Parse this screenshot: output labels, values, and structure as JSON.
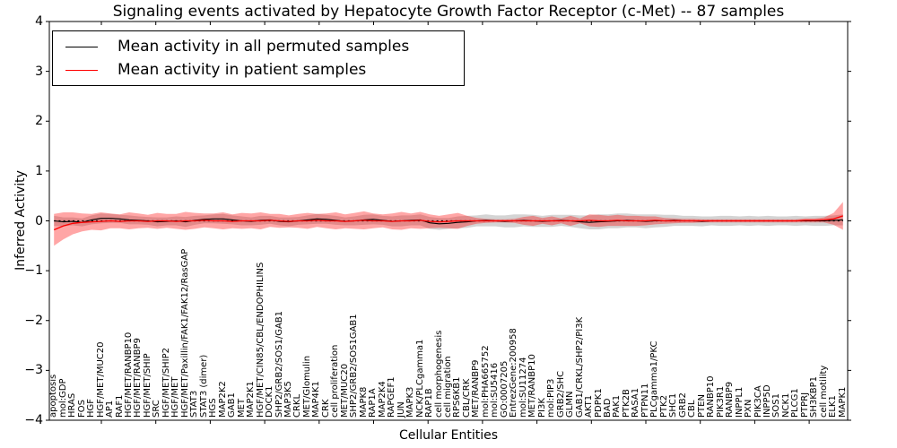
{
  "figure": {
    "title": "Signaling events activated by Hepatocyte Growth Factor Receptor (c-Met) -- 87 samples"
  },
  "chart_data": {
    "type": "line",
    "title": "Signaling events activated by Hepatocyte Growth Factor Receptor (c-Met) -- 87 samples",
    "xlabel": "Cellular Entities",
    "ylabel": "Inferred Activity",
    "ylim": [
      -4,
      4
    ],
    "yticks": [
      4,
      3,
      2,
      1,
      0,
      -1,
      -2,
      -3,
      -4
    ],
    "grid": false,
    "legend_position": "upper left",
    "zero_line": {
      "style": "dotted",
      "color": "#000000",
      "y": 0
    },
    "categories": [
      "apoptosis",
      "mol:GDP",
      "HRAS",
      "FOS",
      "HGF",
      "HGF/MET/MUC20",
      "AP1",
      "RAF1",
      "HGF/MET/RANBP10",
      "HGF/MET/RANBP9",
      "HGF/MET/SHIP",
      "SRC",
      "HGF/MET/SHIP2",
      "HGF/MET",
      "HGF/MET/Paxillin/FAK1/FAK12/RasGAP",
      "STAT3",
      "STAT3 (dimer)",
      "HGS",
      "MAP2K2",
      "GAB1",
      "MET",
      "MAP2K1",
      "HGF/MET/CIN85/CBL/ENDOPHILINS",
      "DOCK1",
      "SHP2/GRB2/SOS1/GAB1",
      "MAP3K5",
      "CRKL",
      "MET/Glomulin",
      "MAP4K1",
      "CRK",
      "cell proliferation",
      "MET/MUC20",
      "SHP2/GRB2/SOS1GAB1",
      "MAPK8",
      "RAP1A",
      "MAP2K4",
      "RAPGEF1",
      "JUN",
      "MAPK3",
      "NCK/PLCgamma1",
      "RAP1B",
      "cell morphogenesis",
      "cell migration",
      "RPS6KB1",
      "CBL/CRK",
      "MET/RANBP9",
      "mol:PHA665752",
      "mol:SU5416",
      "GO:0007205",
      "EntrezGene:200958",
      "mol:SU11274",
      "MET/RANBP10",
      "PI3K",
      "mol:PIP3",
      "GRB2/SHC",
      "GLMN",
      "GAB1/CRKL/SHP2/PI3K",
      "AKT1",
      "PDPK1",
      "BAD",
      "PAK1",
      "PTK2B",
      "RASA1",
      "PTPN11",
      "PLCgamma1/PKC",
      "PTK2",
      "SHC1",
      "GRB2",
      "CBL",
      "PTEN",
      "RANBP10",
      "PIK3R1",
      "RANBP9",
      "INPPL1",
      "PXN",
      "PIK3CA",
      "INPP5D",
      "SOS1",
      "NCK1",
      "PLCG1",
      "PTPRJ",
      "SH3KBP1",
      "cell motility",
      "ELK1",
      "MAPK1"
    ],
    "series": [
      {
        "name": "Mean activity in all permuted samples",
        "color": "#000000",
        "band_color": "#a0a0a0",
        "band_opacity": 0.45,
        "values": [
          0.0,
          -0.02,
          -0.01,
          -0.03,
          0.02,
          0.05,
          0.05,
          0.04,
          0.02,
          0.01,
          0.0,
          -0.02,
          -0.01,
          0.0,
          -0.02,
          0.01,
          0.03,
          0.04,
          0.04,
          0.02,
          0.0,
          -0.01,
          0.01,
          0.02,
          -0.01,
          -0.02,
          0.0,
          0.02,
          0.04,
          0.03,
          0.01,
          -0.01,
          0.0,
          0.02,
          0.03,
          0.01,
          -0.01,
          0.0,
          0.01,
          0.02,
          -0.04,
          -0.06,
          -0.05,
          -0.03,
          -0.02,
          0.0,
          0.01,
          0.0,
          -0.01,
          0.0,
          0.01,
          0.0,
          -0.01,
          0.0,
          0.01,
          0.0,
          -0.02,
          -0.03,
          -0.02,
          -0.01,
          0.0,
          0.01,
          0.0,
          -0.01,
          0.0,
          0.0,
          0.01,
          0.0,
          0.0,
          -0.01,
          0.0,
          0.0,
          0.0,
          0.0,
          0.0,
          0.0,
          0.0,
          0.0,
          0.0,
          0.0,
          0.0,
          0.0,
          0.0,
          0.01,
          0.02
        ],
        "band": [
          0.1,
          0.09,
          0.08,
          0.08,
          0.09,
          0.1,
          0.09,
          0.08,
          0.09,
          0.08,
          0.08,
          0.09,
          0.08,
          0.09,
          0.1,
          0.09,
          0.08,
          0.09,
          0.1,
          0.09,
          0.09,
          0.08,
          0.09,
          0.08,
          0.08,
          0.09,
          0.08,
          0.09,
          0.1,
          0.09,
          0.09,
          0.08,
          0.09,
          0.1,
          0.1,
          0.09,
          0.1,
          0.11,
          0.1,
          0.11,
          0.12,
          0.12,
          0.11,
          0.12,
          0.12,
          0.11,
          0.12,
          0.11,
          0.12,
          0.13,
          0.12,
          0.12,
          0.11,
          0.12,
          0.11,
          0.12,
          0.13,
          0.14,
          0.15,
          0.14,
          0.15,
          0.14,
          0.13,
          0.14,
          0.13,
          0.12,
          0.11,
          0.1,
          0.1,
          0.1,
          0.09,
          0.1,
          0.1,
          0.09,
          0.1,
          0.09,
          0.1,
          0.09,
          0.09,
          0.1,
          0.09,
          0.1,
          0.1,
          0.1,
          0.11
        ]
      },
      {
        "name": "Mean activity in patient samples",
        "color": "#ff0000",
        "band_color": "#ff0000",
        "band_opacity": 0.35,
        "values": [
          -0.18,
          -0.1,
          -0.05,
          -0.03,
          -0.02,
          -0.01,
          0.0,
          -0.01,
          0.0,
          0.0,
          -0.01,
          0.0,
          0.0,
          -0.01,
          0.0,
          0.0,
          0.01,
          0.0,
          0.0,
          -0.01,
          0.0,
          0.0,
          0.0,
          0.01,
          0.0,
          -0.01,
          0.0,
          0.0,
          0.01,
          0.0,
          0.0,
          -0.01,
          0.0,
          0.01,
          0.0,
          0.0,
          -0.01,
          0.0,
          0.0,
          0.01,
          -0.01,
          -0.02,
          -0.01,
          0.0,
          0.0,
          0.0,
          0.0,
          0.0,
          0.0,
          0.0,
          0.0,
          0.0,
          0.0,
          0.0,
          0.0,
          0.0,
          0.0,
          0.01,
          0.0,
          0.0,
          0.01,
          0.0,
          0.0,
          0.0,
          0.01,
          0.0,
          0.0,
          0.0,
          0.0,
          0.0,
          0.0,
          0.0,
          0.0,
          0.0,
          0.0,
          0.0,
          0.0,
          0.0,
          0.0,
          0.0,
          0.01,
          0.01,
          0.02,
          0.04,
          0.1
        ],
        "band": [
          0.32,
          0.27,
          0.22,
          0.18,
          0.16,
          0.18,
          0.15,
          0.14,
          0.17,
          0.15,
          0.13,
          0.16,
          0.14,
          0.15,
          0.18,
          0.16,
          0.14,
          0.15,
          0.17,
          0.14,
          0.16,
          0.15,
          0.17,
          0.13,
          0.14,
          0.12,
          0.14,
          0.16,
          0.13,
          0.15,
          0.17,
          0.14,
          0.16,
          0.18,
          0.15,
          0.13,
          0.16,
          0.18,
          0.15,
          0.17,
          0.14,
          0.12,
          0.14,
          0.16,
          0.1,
          0.06,
          0.04,
          0.03,
          0.03,
          0.04,
          0.08,
          0.1,
          0.06,
          0.09,
          0.05,
          0.1,
          0.05,
          0.12,
          0.12,
          0.1,
          0.11,
          0.1,
          0.1,
          0.09,
          0.08,
          0.06,
          0.05,
          0.04,
          0.04,
          0.03,
          0.03,
          0.03,
          0.03,
          0.03,
          0.03,
          0.03,
          0.03,
          0.03,
          0.03,
          0.03,
          0.04,
          0.04,
          0.05,
          0.12,
          0.28
        ]
      }
    ]
  }
}
